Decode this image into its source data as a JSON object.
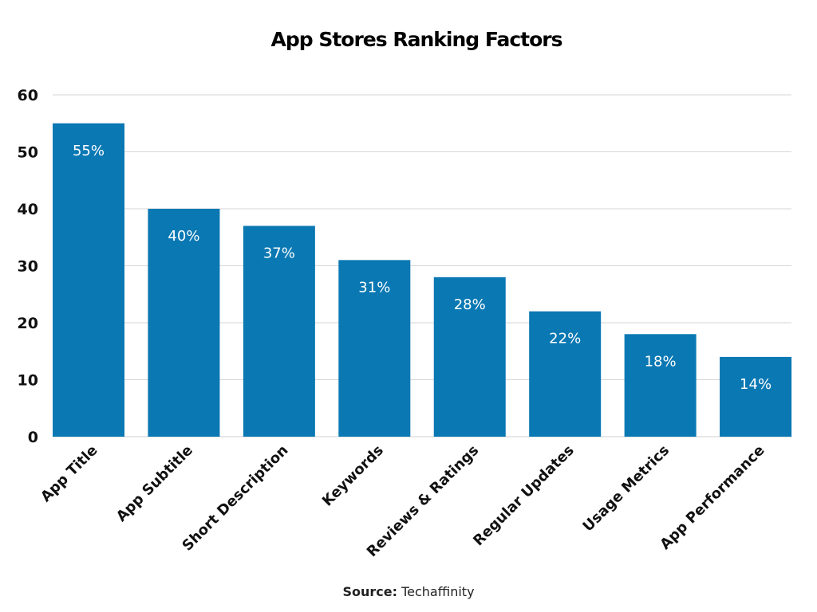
{
  "chart_data": {
    "type": "bar",
    "title": "App Stores Ranking Factors",
    "categories": [
      "App Title",
      "App Subtitle",
      "Short Description",
      "Keywords",
      "Reviews & Ratings",
      "Regular Updates",
      "Usage Metrics",
      "App Performance"
    ],
    "values": [
      55,
      40,
      37,
      31,
      28,
      22,
      18,
      14
    ],
    "data_labels": [
      "55%",
      "40%",
      "37%",
      "31%",
      "28%",
      "22%",
      "18%",
      "14%"
    ],
    "xlabel": "",
    "ylabel": "",
    "ylim": [
      0,
      60
    ],
    "yticks": [
      0,
      10,
      20,
      30,
      40,
      50,
      60
    ],
    "grid": true,
    "bar_color": "#0a78b3"
  },
  "source": {
    "label": "Source:",
    "value": "Techaffinity"
  }
}
